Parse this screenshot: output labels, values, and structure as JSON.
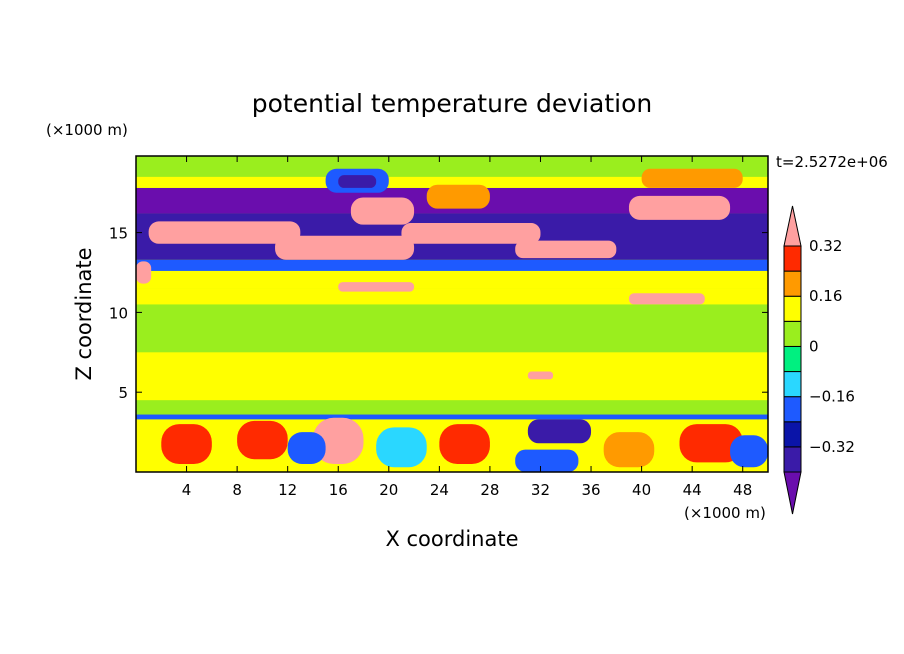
{
  "chart_data": {
    "type": "heatmap",
    "title": "potential temperature deviation",
    "xlabel": "X coordinate",
    "ylabel": "Z coordinate",
    "x_unit": "(×1000 m)",
    "y_unit": "(×1000 m)",
    "time_label": "t=2.5272e+06",
    "xlim": [
      0,
      50
    ],
    "ylim": [
      0,
      19.8
    ],
    "x_ticks": [
      4,
      8,
      12,
      16,
      20,
      24,
      28,
      32,
      36,
      40,
      44,
      48
    ],
    "y_ticks": [
      5,
      10,
      15
    ],
    "colorbar": {
      "levels": [
        -0.4,
        -0.32,
        -0.24,
        -0.16,
        -0.08,
        0,
        0.08,
        0.16,
        0.24,
        0.32,
        0.4
      ],
      "labeled_levels": [
        0.32,
        0.16,
        0,
        -0.16,
        -0.32
      ],
      "colors": [
        "#6a0dad",
        "#3a1ba8",
        "#0a14a8",
        "#1e5aff",
        "#2ad7ff",
        "#00f080",
        "#9aee1e",
        "#ffff00",
        "#ff9a00",
        "#ff2a00",
        "#ffa0a0"
      ],
      "extend": "both"
    },
    "regions": [
      {
        "x0": 0,
        "x1": 50,
        "z0": 0,
        "z1": 19.8,
        "value": 0.02
      },
      {
        "x0": 0,
        "x1": 50,
        "z0": 4.5,
        "z1": 11.5,
        "value": 0.1
      },
      {
        "x0": 0,
        "x1": 50,
        "z0": 7.5,
        "z1": 10.5,
        "value": 0.02
      },
      {
        "x0": 0,
        "x1": 50,
        "z0": 0,
        "z1": 3.3,
        "value": 0.1
      },
      {
        "x0": 0,
        "x1": 50,
        "z0": 3.3,
        "z1": 3.6,
        "value": -0.18
      },
      {
        "x0": 0,
        "x1": 50,
        "z0": 11.5,
        "z1": 12.6,
        "value": 0.1
      },
      {
        "x0": 0,
        "x1": 50,
        "z0": 12.6,
        "z1": 13.3,
        "value": -0.2
      },
      {
        "x0": 0,
        "x1": 50,
        "z0": 13.3,
        "z1": 16.2,
        "value": -0.34
      },
      {
        "x0": 0,
        "x1": 50,
        "z0": 16.2,
        "z1": 17.8,
        "value": -0.42
      },
      {
        "x0": 0,
        "x1": 50,
        "z0": 17.8,
        "z1": 18.5,
        "value": 0.1
      },
      {
        "x0": 0,
        "x1": 50,
        "z0": 18.5,
        "z1": 19.8,
        "value": 0.02
      },
      {
        "x0": 1,
        "x1": 13,
        "z0": 14.3,
        "z1": 15.7,
        "value": 0.45
      },
      {
        "x0": 11,
        "x1": 22,
        "z0": 13.3,
        "z1": 14.8,
        "value": 0.45
      },
      {
        "x0": 21,
        "x1": 32,
        "z0": 14.3,
        "z1": 15.6,
        "value": 0.45
      },
      {
        "x0": 30,
        "x1": 38,
        "z0": 13.4,
        "z1": 14.5,
        "value": 0.45
      },
      {
        "x0": 39,
        "x1": 47,
        "z0": 15.8,
        "z1": 17.3,
        "value": 0.45
      },
      {
        "x0": 17,
        "x1": 22,
        "z0": 15.5,
        "z1": 17.2,
        "value": 0.45
      },
      {
        "x0": 15,
        "x1": 20,
        "z0": 17.5,
        "z1": 19.0,
        "value": -0.2
      },
      {
        "x0": 16,
        "x1": 19,
        "z0": 17.8,
        "z1": 18.6,
        "value": -0.36
      },
      {
        "x0": 23,
        "x1": 28,
        "z0": 16.5,
        "z1": 18.0,
        "value": 0.2
      },
      {
        "x0": 40,
        "x1": 48,
        "z0": 17.8,
        "z1": 19.0,
        "value": 0.2
      },
      {
        "x0": 0,
        "x1": 1.2,
        "z0": 11.8,
        "z1": 13.2,
        "value": 0.45
      },
      {
        "x0": 16,
        "x1": 22,
        "z0": 11.3,
        "z1": 11.9,
        "value": 0.45
      },
      {
        "x0": 39,
        "x1": 45,
        "z0": 10.5,
        "z1": 11.2,
        "value": 0.45
      },
      {
        "x0": 31,
        "x1": 33,
        "z0": 5.8,
        "z1": 6.3,
        "value": 0.45
      },
      {
        "x0": 31,
        "x1": 36,
        "z0": 1.8,
        "z1": 3.3,
        "value": -0.36
      },
      {
        "x0": 30,
        "x1": 35,
        "z0": 0,
        "z1": 1.4,
        "value": -0.2
      },
      {
        "x0": 2,
        "x1": 6,
        "z0": 0.5,
        "z1": 3.0,
        "value": 0.3
      },
      {
        "x0": 8,
        "x1": 12,
        "z0": 0.8,
        "z1": 3.2,
        "value": 0.3
      },
      {
        "x0": 14,
        "x1": 18,
        "z0": 0.5,
        "z1": 3.4,
        "value": 0.45
      },
      {
        "x0": 19,
        "x1": 23,
        "z0": 0.3,
        "z1": 2.8,
        "value": -0.14
      },
      {
        "x0": 24,
        "x1": 28,
        "z0": 0.5,
        "z1": 3.0,
        "value": 0.3
      },
      {
        "x0": 37,
        "x1": 41,
        "z0": 0.3,
        "z1": 2.5,
        "value": 0.2
      },
      {
        "x0": 43,
        "x1": 48,
        "z0": 0.6,
        "z1": 3.0,
        "value": 0.3
      },
      {
        "x0": 12,
        "x1": 15,
        "z0": 0.5,
        "z1": 2.5,
        "value": -0.24
      },
      {
        "x0": 47,
        "x1": 50,
        "z0": 0.3,
        "z1": 2.3,
        "value": -0.2
      }
    ]
  }
}
